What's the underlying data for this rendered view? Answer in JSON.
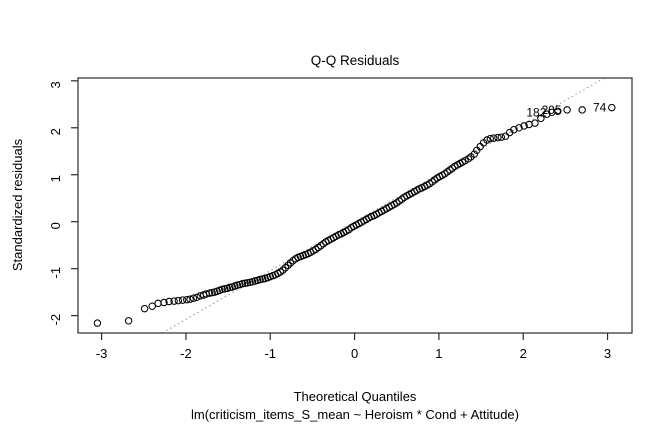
{
  "chart_data": {
    "type": "scatter",
    "title": "Q-Q Residuals",
    "xlabel": "Theoretical Quantiles",
    "sublabel": "lm(criticism_items_S_mean ~ Heroism * Cond + Attitude)",
    "ylabel": "Standardized residuals",
    "x_ticks": [
      -3,
      -2,
      -1,
      0,
      1,
      2,
      3
    ],
    "y_ticks": [
      -2,
      -1,
      0,
      1,
      2,
      3
    ],
    "xlim": [
      -3.28,
      3.29
    ],
    "ylim": [
      -2.37,
      3.06
    ],
    "grid": false,
    "marker": {
      "shape": "open-circle",
      "color": "#000000",
      "radius": 3.2
    },
    "ref_line": {
      "x1": -2.28,
      "y1": -2.37,
      "x2": 2.96,
      "y2": 3.06,
      "style": "dotted",
      "color": "#999999"
    },
    "labeled_points": [
      {
        "label": "182",
        "x": 2.34,
        "y": 2.33
      },
      {
        "label": "205",
        "x": 2.52,
        "y": 2.38
      },
      {
        "label": "74",
        "x": 3.05,
        "y": 2.43
      }
    ],
    "points": [
      [
        -3.05,
        -2.16
      ],
      [
        -2.68,
        -2.11
      ],
      [
        -2.49,
        -1.85
      ],
      [
        -2.4,
        -1.8
      ],
      [
        -2.33,
        -1.74
      ],
      [
        -2.26,
        -1.72
      ],
      [
        -2.2,
        -1.7
      ],
      [
        -2.14,
        -1.69
      ],
      [
        -2.09,
        -1.68
      ],
      [
        -2.04,
        -1.67
      ],
      [
        -1.99,
        -1.66
      ],
      [
        -1.95,
        -1.65
      ],
      [
        -1.91,
        -1.63
      ],
      [
        -1.87,
        -1.61
      ],
      [
        -1.83,
        -1.58
      ],
      [
        -1.79,
        -1.56
      ],
      [
        -1.76,
        -1.54
      ],
      [
        -1.72,
        -1.52
      ],
      [
        -1.69,
        -1.51
      ],
      [
        -1.66,
        -1.5
      ],
      [
        -1.63,
        -1.48
      ],
      [
        -1.6,
        -1.46
      ],
      [
        -1.57,
        -1.44
      ],
      [
        -1.54,
        -1.43
      ],
      [
        -1.51,
        -1.42
      ],
      [
        -1.48,
        -1.4
      ],
      [
        -1.45,
        -1.39
      ],
      [
        -1.42,
        -1.37
      ],
      [
        -1.39,
        -1.35
      ],
      [
        -1.36,
        -1.34
      ],
      [
        -1.33,
        -1.32
      ],
      [
        -1.3,
        -1.31
      ],
      [
        -1.27,
        -1.3
      ],
      [
        -1.24,
        -1.29
      ],
      [
        -1.21,
        -1.28
      ],
      [
        -1.18,
        -1.26
      ],
      [
        -1.15,
        -1.25
      ],
      [
        -1.12,
        -1.23
      ],
      [
        -1.09,
        -1.22
      ],
      [
        -1.06,
        -1.21
      ],
      [
        -1.03,
        -1.19
      ],
      [
        -1.0,
        -1.17
      ],
      [
        -0.97,
        -1.15
      ],
      [
        -0.94,
        -1.13
      ],
      [
        -0.91,
        -1.1
      ],
      [
        -0.88,
        -1.07
      ],
      [
        -0.85,
        -1.03
      ],
      [
        -0.82,
        -0.98
      ],
      [
        -0.79,
        -0.93
      ],
      [
        -0.76,
        -0.88
      ],
      [
        -0.73,
        -0.83
      ],
      [
        -0.7,
        -0.79
      ],
      [
        -0.67,
        -0.76
      ],
      [
        -0.64,
        -0.74
      ],
      [
        -0.61,
        -0.72
      ],
      [
        -0.58,
        -0.7
      ],
      [
        -0.55,
        -0.68
      ],
      [
        -0.52,
        -0.65
      ],
      [
        -0.49,
        -0.62
      ],
      [
        -0.46,
        -0.59
      ],
      [
        -0.43,
        -0.55
      ],
      [
        -0.4,
        -0.51
      ],
      [
        -0.37,
        -0.47
      ],
      [
        -0.34,
        -0.43
      ],
      [
        -0.31,
        -0.4
      ],
      [
        -0.28,
        -0.37
      ],
      [
        -0.25,
        -0.34
      ],
      [
        -0.22,
        -0.31
      ],
      [
        -0.19,
        -0.28
      ],
      [
        -0.16,
        -0.26
      ],
      [
        -0.13,
        -0.23
      ],
      [
        -0.1,
        -0.2
      ],
      [
        -0.07,
        -0.17
      ],
      [
        -0.04,
        -0.13
      ],
      [
        -0.01,
        -0.1
      ],
      [
        0.02,
        -0.07
      ],
      [
        0.05,
        -0.04
      ],
      [
        0.08,
        -0.01
      ],
      [
        0.11,
        0.02
      ],
      [
        0.14,
        0.05
      ],
      [
        0.17,
        0.08
      ],
      [
        0.2,
        0.11
      ],
      [
        0.23,
        0.13
      ],
      [
        0.26,
        0.16
      ],
      [
        0.29,
        0.19
      ],
      [
        0.32,
        0.22
      ],
      [
        0.35,
        0.25
      ],
      [
        0.38,
        0.28
      ],
      [
        0.41,
        0.31
      ],
      [
        0.44,
        0.34
      ],
      [
        0.47,
        0.37
      ],
      [
        0.5,
        0.4
      ],
      [
        0.53,
        0.44
      ],
      [
        0.56,
        0.48
      ],
      [
        0.59,
        0.52
      ],
      [
        0.62,
        0.55
      ],
      [
        0.65,
        0.58
      ],
      [
        0.68,
        0.61
      ],
      [
        0.71,
        0.64
      ],
      [
        0.74,
        0.67
      ],
      [
        0.77,
        0.7
      ],
      [
        0.8,
        0.72
      ],
      [
        0.83,
        0.75
      ],
      [
        0.86,
        0.78
      ],
      [
        0.89,
        0.81
      ],
      [
        0.92,
        0.85
      ],
      [
        0.95,
        0.89
      ],
      [
        0.98,
        0.93
      ],
      [
        1.01,
        0.96
      ],
      [
        1.04,
        0.99
      ],
      [
        1.07,
        1.02
      ],
      [
        1.1,
        1.06
      ],
      [
        1.13,
        1.1
      ],
      [
        1.16,
        1.14
      ],
      [
        1.19,
        1.18
      ],
      [
        1.22,
        1.21
      ],
      [
        1.25,
        1.24
      ],
      [
        1.28,
        1.27
      ],
      [
        1.31,
        1.3
      ],
      [
        1.35,
        1.34
      ],
      [
        1.38,
        1.38
      ],
      [
        1.42,
        1.44
      ],
      [
        1.45,
        1.52
      ],
      [
        1.49,
        1.6
      ],
      [
        1.53,
        1.68
      ],
      [
        1.57,
        1.74
      ],
      [
        1.61,
        1.77
      ],
      [
        1.65,
        1.78
      ],
      [
        1.7,
        1.79
      ],
      [
        1.74,
        1.8
      ],
      [
        1.79,
        1.82
      ],
      [
        1.84,
        1.9
      ],
      [
        1.89,
        1.96
      ],
      [
        1.95,
        2.0
      ],
      [
        2.01,
        2.04
      ],
      [
        2.07,
        2.07
      ],
      [
        2.14,
        2.1
      ],
      [
        2.21,
        2.2
      ],
      [
        2.28,
        2.29
      ],
      [
        2.34,
        2.33
      ],
      [
        2.41,
        2.35
      ],
      [
        2.52,
        2.38
      ],
      [
        2.7,
        2.38
      ],
      [
        3.05,
        2.43
      ]
    ]
  }
}
